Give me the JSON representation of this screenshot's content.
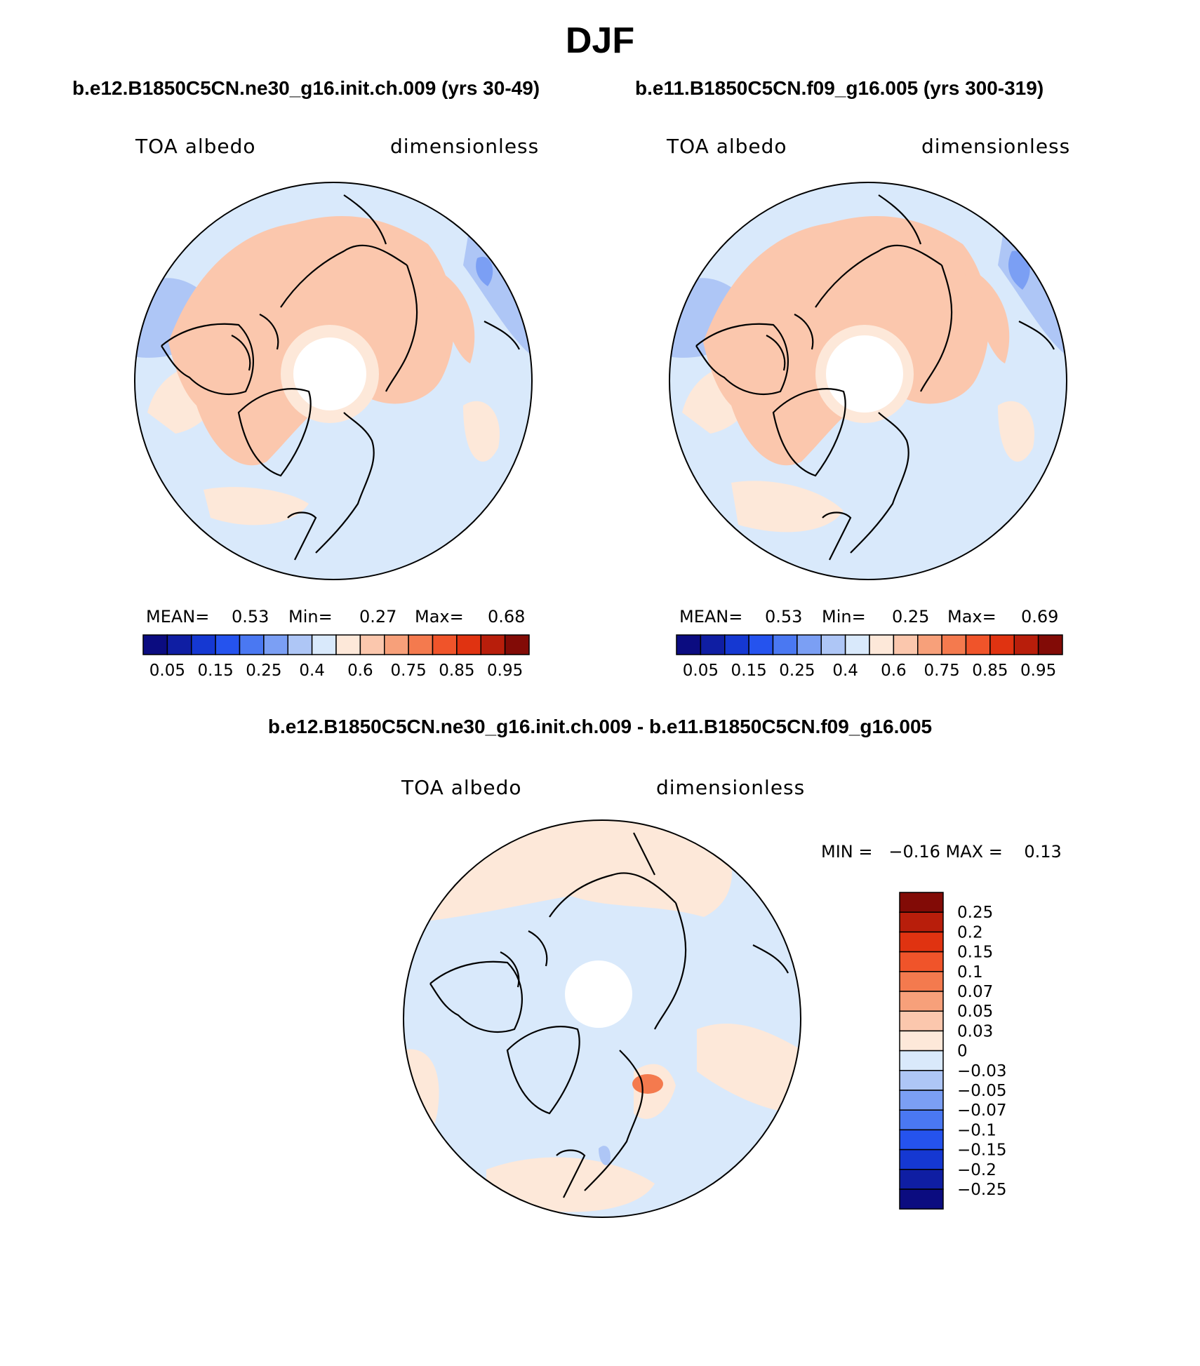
{
  "title": "DJF",
  "panels": [
    {
      "id": "case1",
      "subtitle": "b.e12.B1850C5CN.ne30_g16.init.ch.009 (yrs 30-49)",
      "variable_label": "TOA albedo",
      "units_label": "dimensionless",
      "stats": {
        "mean_label": "MEAN=",
        "mean": "0.53",
        "min_label": "Min=",
        "min": "0.27",
        "max_label": "Max=",
        "max": "0.68"
      }
    },
    {
      "id": "case2",
      "subtitle": "b.e11.B1850C5CN.f09_g16.005 (yrs 300-319)",
      "variable_label": "TOA albedo",
      "units_label": "dimensionless",
      "stats": {
        "mean_label": "MEAN=",
        "mean": "0.53",
        "min_label": "Min=",
        "min": "0.25",
        "max_label": "Max=",
        "max": "0.69"
      }
    }
  ],
  "difference": {
    "subtitle": "b.e12.B1850C5CN.ne30_g16.init.ch.009 - b.e11.B1850C5CN.f09_g16.005",
    "variable_label": "TOA albedo",
    "units_label": "dimensionless",
    "minmax": "MIN =   −0.16 MAX =    0.13"
  },
  "colorbar_abs": {
    "colors": [
      "#0b0c80",
      "#0f1ea3",
      "#1538d2",
      "#2553ee",
      "#4a78f2",
      "#7b9ff4",
      "#aec6f6",
      "#d9e9fb",
      "#fde8d9",
      "#fbc7ad",
      "#f7a07a",
      "#f47a4e",
      "#f0542a",
      "#e03311",
      "#b81e0b",
      "#820b06"
    ],
    "ticks": [
      "0.05",
      "0.15",
      "0.25",
      "0.4",
      "0.6",
      "0.75",
      "0.85",
      "0.95"
    ]
  },
  "colorbar_diff": {
    "colors": [
      "#820b06",
      "#b81e0b",
      "#e03311",
      "#f0542a",
      "#f47a4e",
      "#f7a07a",
      "#fbc7ad",
      "#fde8d9",
      "#d9e9fb",
      "#aec6f6",
      "#7b9ff4",
      "#4a78f2",
      "#2553ee",
      "#1538d2",
      "#0f1ea3",
      "#0b0c80"
    ],
    "ticks": [
      "0.25",
      "0.2",
      "0.15",
      "0.1",
      "0.07",
      "0.05",
      "0.03",
      "0",
      "−0.03",
      "−0.05",
      "−0.07",
      "−0.1",
      "−0.15",
      "−0.2",
      "−0.25"
    ]
  },
  "map_colors": {
    "low": "#d9e9fb",
    "mid_low": "#aec6f6",
    "blue": "#7b9ff4",
    "high": "#fde8d9",
    "high2": "#fbc7ad",
    "high3": "#f7a07a",
    "coast": "#000000"
  }
}
